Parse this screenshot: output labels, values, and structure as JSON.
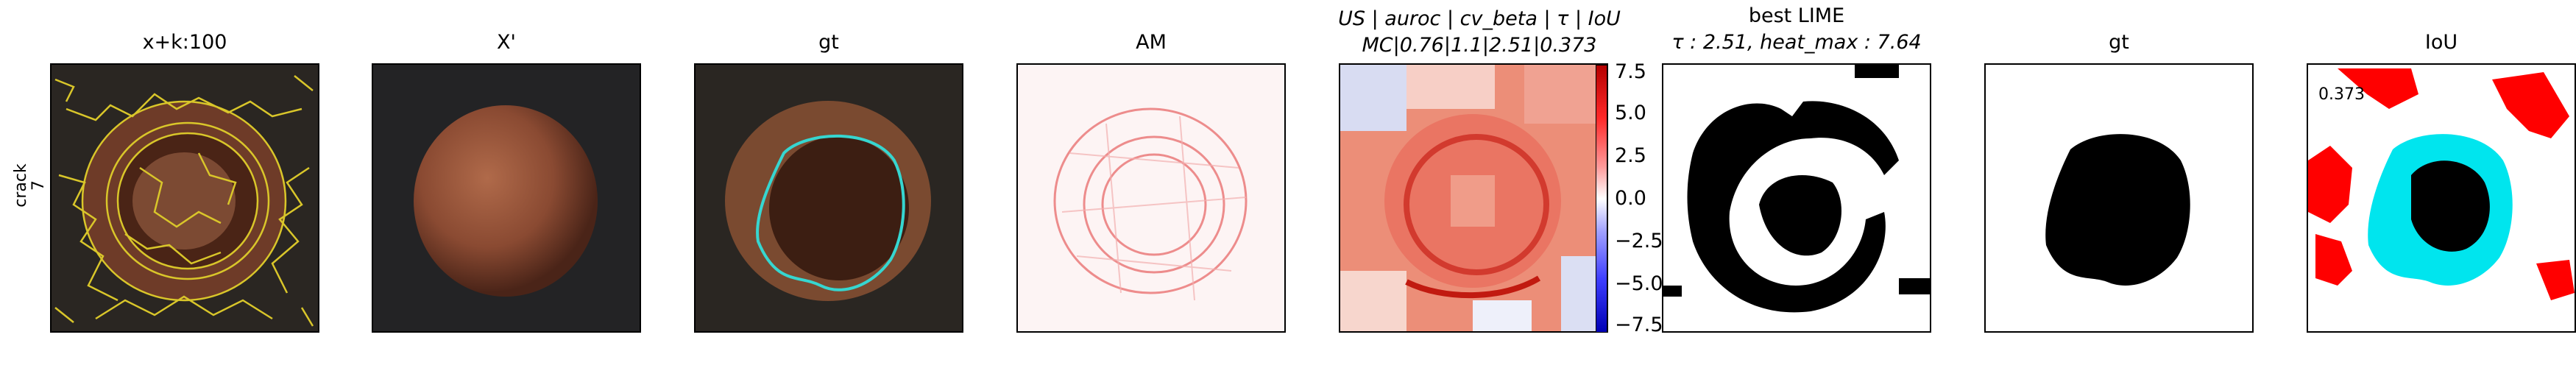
{
  "row": {
    "label_line1": "crack",
    "label_line2": "7"
  },
  "panels": [
    {
      "id": "xk",
      "title": "x+k:100"
    },
    {
      "id": "xprime",
      "title": "X'"
    },
    {
      "id": "gt1",
      "title": "gt"
    },
    {
      "id": "am",
      "title": "AM"
    },
    {
      "id": "us",
      "title_line1": "US | auroc | cv_beta | τ | IoU",
      "title_line2": "MC|0.76|1.1|2.51|0.373"
    },
    {
      "id": "lime",
      "title_line1": "best LIME",
      "title_line2": "τ : 2.51, heat_max : 7.64"
    },
    {
      "id": "gt2",
      "title": "gt"
    },
    {
      "id": "iou",
      "title": "IoU",
      "inset_text": "0.373"
    }
  ],
  "colorbar": {
    "ticks": [
      "7.5",
      "5.0",
      "2.5",
      "0.0",
      "−2.5",
      "−5.0",
      "−7.5"
    ],
    "max": 7.5,
    "min": -7.5
  },
  "colors": {
    "overlay_yellow": "#d9c62a",
    "gt_cyan": "#36d6d0",
    "iou_red": "#ff0000",
    "iou_cyan": "#00e5ee",
    "nut_brown": "#7a3a25"
  }
}
